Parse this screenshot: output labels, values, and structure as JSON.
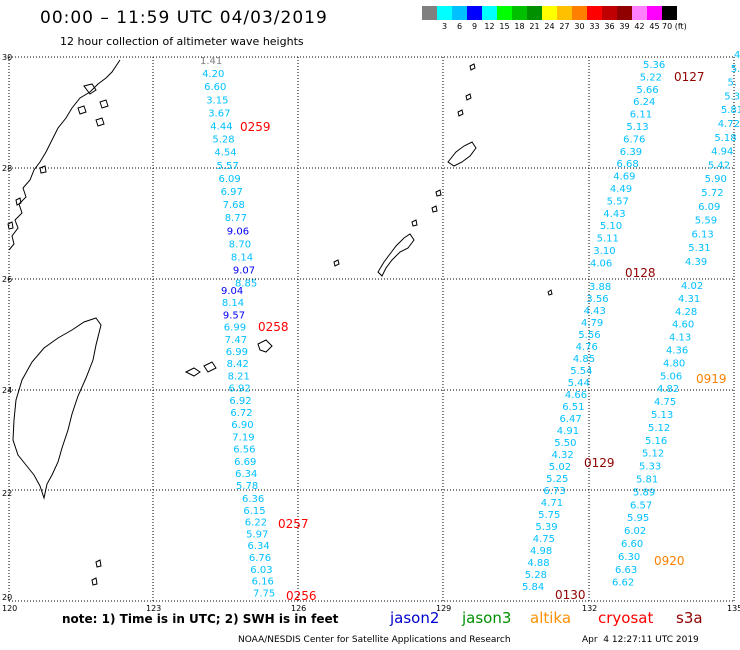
{
  "header": {
    "title": "00:00 – 11:59 UTC 04/03/2019",
    "subtitle": "12 hour collection of altimeter wave heights"
  },
  "scale": {
    "colors": [
      "#808080",
      "#00ffff",
      "#00c0ff",
      "#0000ff",
      "#00ffff",
      "#00ff00",
      "#00c000",
      "#009000",
      "#ffff00",
      "#ffc000",
      "#ff8000",
      "#ff0000",
      "#c00000",
      "#900000",
      "#ff80ff",
      "#ff00ff",
      "#000000"
    ],
    "labels": [
      "",
      "3",
      "6",
      "9",
      "12",
      "15",
      "18",
      "21",
      "24",
      "27",
      "30",
      "33",
      "36",
      "39",
      "42",
      "45",
      "70 (ft)"
    ]
  },
  "map": {
    "lat_labels": [
      "30",
      "28",
      "26",
      "24",
      "22",
      "20"
    ],
    "lon_labels": [
      "120",
      "123",
      "126",
      "129",
      "132",
      "135"
    ],
    "passes": [
      {
        "time": "0259",
        "time_color": "#ff0000",
        "points": [
          {
            "v": "1.41",
            "c": "#808080"
          },
          {
            "v": "4.20",
            "c": "#00c0ff"
          },
          {
            "v": "6.60",
            "c": "#00c0ff"
          },
          {
            "v": "3.15",
            "c": "#00c0ff"
          },
          {
            "v": "3.67",
            "c": "#00c0ff"
          },
          {
            "v": "4.44",
            "c": "#00c0ff"
          },
          {
            "v": "5.28",
            "c": "#00c0ff"
          },
          {
            "v": "4.54",
            "c": "#00c0ff"
          },
          {
            "v": "5.57",
            "c": "#00c0ff"
          },
          {
            "v": "6.09",
            "c": "#00c0ff"
          },
          {
            "v": "6.97",
            "c": "#00c0ff"
          },
          {
            "v": "7.68",
            "c": "#00c0ff"
          },
          {
            "v": "8.77",
            "c": "#00c0ff"
          },
          {
            "v": "9.06",
            "c": "#0000ff"
          },
          {
            "v": "8.70",
            "c": "#00c0ff"
          },
          {
            "v": "8.14",
            "c": "#00c0ff"
          },
          {
            "v": "9.07",
            "c": "#0000ff"
          },
          {
            "v": "8.85",
            "c": "#00c0ff"
          }
        ]
      },
      {
        "time": "0258",
        "time_color": "#ff0000",
        "points": [
          {
            "v": "9.04",
            "c": "#0000ff"
          },
          {
            "v": "8.14",
            "c": "#00c0ff"
          },
          {
            "v": "9.57",
            "c": "#0000ff"
          },
          {
            "v": "6.99",
            "c": "#00c0ff"
          },
          {
            "v": "7.47",
            "c": "#00c0ff"
          },
          {
            "v": "6.99",
            "c": "#00c0ff"
          },
          {
            "v": "8.42",
            "c": "#00c0ff"
          },
          {
            "v": "8.21",
            "c": "#00c0ff"
          },
          {
            "v": "6.92",
            "c": "#00c0ff"
          },
          {
            "v": "6.92",
            "c": "#00c0ff"
          },
          {
            "v": "6.72",
            "c": "#00c0ff"
          },
          {
            "v": "6.90",
            "c": "#00c0ff"
          },
          {
            "v": "7.19",
            "c": "#00c0ff"
          },
          {
            "v": "6.56",
            "c": "#00c0ff"
          },
          {
            "v": "6.69",
            "c": "#00c0ff"
          },
          {
            "v": "6.34",
            "c": "#00c0ff"
          },
          {
            "v": "5.78",
            "c": "#00c0ff"
          }
        ]
      },
      {
        "time": "0257",
        "time_color": "#ff0000",
        "points": [
          {
            "v": "6.36",
            "c": "#00c0ff"
          },
          {
            "v": "6.15",
            "c": "#00c0ff"
          },
          {
            "v": "6.22",
            "c": "#00c0ff"
          },
          {
            "v": "5.97",
            "c": "#00c0ff"
          },
          {
            "v": "6.34",
            "c": "#00c0ff"
          },
          {
            "v": "6.76",
            "c": "#00c0ff"
          },
          {
            "v": "6.03",
            "c": "#00c0ff"
          },
          {
            "v": "6.16",
            "c": "#00c0ff"
          },
          {
            "v": "7.75",
            "c": "#00c0ff"
          }
        ]
      },
      {
        "time": "0256",
        "time_color": "#ff0000",
        "points": []
      },
      {
        "time": "0127",
        "time_color": "#900000",
        "points": [
          {
            "v": "5.36",
            "c": "#00c0ff"
          },
          {
            "v": "5.22",
            "c": "#00c0ff"
          },
          {
            "v": "5.66",
            "c": "#00c0ff"
          },
          {
            "v": "6.24",
            "c": "#00c0ff"
          },
          {
            "v": "6.11",
            "c": "#00c0ff"
          },
          {
            "v": "5.13",
            "c": "#00c0ff"
          },
          {
            "v": "6.76",
            "c": "#00c0ff"
          },
          {
            "v": "6.39",
            "c": "#00c0ff"
          },
          {
            "v": "6.68",
            "c": "#00c0ff"
          },
          {
            "v": "4.69",
            "c": "#00c0ff"
          },
          {
            "v": "4.49",
            "c": "#00c0ff"
          },
          {
            "v": "5.57",
            "c": "#00c0ff"
          },
          {
            "v": "4.43",
            "c": "#00c0ff"
          },
          {
            "v": "5.10",
            "c": "#00c0ff"
          },
          {
            "v": "5.11",
            "c": "#00c0ff"
          },
          {
            "v": "3.10",
            "c": "#00c0ff"
          },
          {
            "v": "4.06",
            "c": "#00c0ff"
          }
        ]
      },
      {
        "time": "0128",
        "time_color": "#900000",
        "points": []
      },
      {
        "time": "",
        "time_color": "#900000",
        "points": [
          {
            "v": "4",
            "c": "#00c0ff"
          },
          {
            "v": "5.",
            "c": "#00c0ff"
          },
          {
            "v": "5.",
            "c": "#00c0ff"
          },
          {
            "v": "5.3",
            "c": "#00c0ff"
          },
          {
            "v": "5.81",
            "c": "#00c0ff"
          },
          {
            "v": "4.72",
            "c": "#00c0ff"
          },
          {
            "v": "5.18",
            "c": "#00c0ff"
          },
          {
            "v": "4.94",
            "c": "#00c0ff"
          },
          {
            "v": "5.42",
            "c": "#00c0ff"
          },
          {
            "v": "5.90",
            "c": "#00c0ff"
          },
          {
            "v": "5.72",
            "c": "#00c0ff"
          },
          {
            "v": "6.09",
            "c": "#00c0ff"
          },
          {
            "v": "5.59",
            "c": "#00c0ff"
          },
          {
            "v": "6.13",
            "c": "#00c0ff"
          },
          {
            "v": "5.31",
            "c": "#00c0ff"
          },
          {
            "v": "4.39",
            "c": "#00c0ff"
          }
        ]
      },
      {
        "time": "0129",
        "time_color": "#900000",
        "points": [
          {
            "v": "3.88",
            "c": "#00c0ff"
          },
          {
            "v": "3.56",
            "c": "#00c0ff"
          },
          {
            "v": "4.43",
            "c": "#00c0ff"
          },
          {
            "v": "4.79",
            "c": "#00c0ff"
          },
          {
            "v": "5.56",
            "c": "#00c0ff"
          },
          {
            "v": "4.76",
            "c": "#00c0ff"
          },
          {
            "v": "4.85",
            "c": "#00c0ff"
          },
          {
            "v": "5.54",
            "c": "#00c0ff"
          },
          {
            "v": "5.44",
            "c": "#00c0ff"
          },
          {
            "v": "4.66",
            "c": "#00c0ff"
          },
          {
            "v": "6.51",
            "c": "#00c0ff"
          },
          {
            "v": "6.47",
            "c": "#00c0ff"
          },
          {
            "v": "4.91",
            "c": "#00c0ff"
          },
          {
            "v": "5.50",
            "c": "#00c0ff"
          },
          {
            "v": "4.32",
            "c": "#00c0ff"
          },
          {
            "v": "5.02",
            "c": "#00c0ff"
          },
          {
            "v": "5.25",
            "c": "#00c0ff"
          },
          {
            "v": "6.73",
            "c": "#00c0ff"
          },
          {
            "v": "4.71",
            "c": "#00c0ff"
          },
          {
            "v": "5.75",
            "c": "#00c0ff"
          },
          {
            "v": "5.39",
            "c": "#00c0ff"
          },
          {
            "v": "4.75",
            "c": "#00c0ff"
          },
          {
            "v": "4.98",
            "c": "#00c0ff"
          },
          {
            "v": "4.88",
            "c": "#00c0ff"
          },
          {
            "v": "5.28",
            "c": "#00c0ff"
          },
          {
            "v": "5.84",
            "c": "#00c0ff"
          }
        ]
      },
      {
        "time": "0130",
        "time_color": "#900000",
        "points": []
      },
      {
        "time": "0919",
        "time_color": "#ff8000",
        "points": [
          {
            "v": "4.02",
            "c": "#00c0ff"
          },
          {
            "v": "4.31",
            "c": "#00c0ff"
          },
          {
            "v": "4.28",
            "c": "#00c0ff"
          },
          {
            "v": "4.60",
            "c": "#00c0ff"
          },
          {
            "v": "4.13",
            "c": "#00c0ff"
          },
          {
            "v": "4.36",
            "c": "#00c0ff"
          },
          {
            "v": "4.80",
            "c": "#00c0ff"
          },
          {
            "v": "5.06",
            "c": "#00c0ff"
          },
          {
            "v": "4.82",
            "c": "#00c0ff"
          },
          {
            "v": "4.75",
            "c": "#00c0ff"
          },
          {
            "v": "5.13",
            "c": "#00c0ff"
          },
          {
            "v": "5.12",
            "c": "#00c0ff"
          },
          {
            "v": "5.16",
            "c": "#00c0ff"
          },
          {
            "v": "5.12",
            "c": "#00c0ff"
          },
          {
            "v": "5.33",
            "c": "#00c0ff"
          },
          {
            "v": "5.81",
            "c": "#00c0ff"
          },
          {
            "v": "5.89",
            "c": "#00c0ff"
          },
          {
            "v": "6.57",
            "c": "#00c0ff"
          },
          {
            "v": "5.95",
            "c": "#00c0ff"
          },
          {
            "v": "6.02",
            "c": "#00c0ff"
          },
          {
            "v": "6.60",
            "c": "#00c0ff"
          },
          {
            "v": "6.30",
            "c": "#00c0ff"
          },
          {
            "v": "6.63",
            "c": "#00c0ff"
          },
          {
            "v": "6.62",
            "c": "#00c0ff"
          }
        ]
      },
      {
        "time": "0920",
        "time_color": "#ff8000",
        "points": []
      }
    ]
  },
  "footer": {
    "note": "note: 1) Time is in UTC; 2) SWH is in feet",
    "satellites": [
      {
        "name": "jason2",
        "color": "#0000cc"
      },
      {
        "name": "jason3",
        "color": "#009000"
      },
      {
        "name": "altika",
        "color": "#ff9000"
      },
      {
        "name": "cryosat",
        "color": "#ff0000"
      },
      {
        "name": "s3a",
        "color": "#900000"
      }
    ],
    "credit": "NOAA/NESDIS Center for Satellite Applications and Research",
    "timestamp": "Apr  4 12:27:11 UTC 2019"
  }
}
